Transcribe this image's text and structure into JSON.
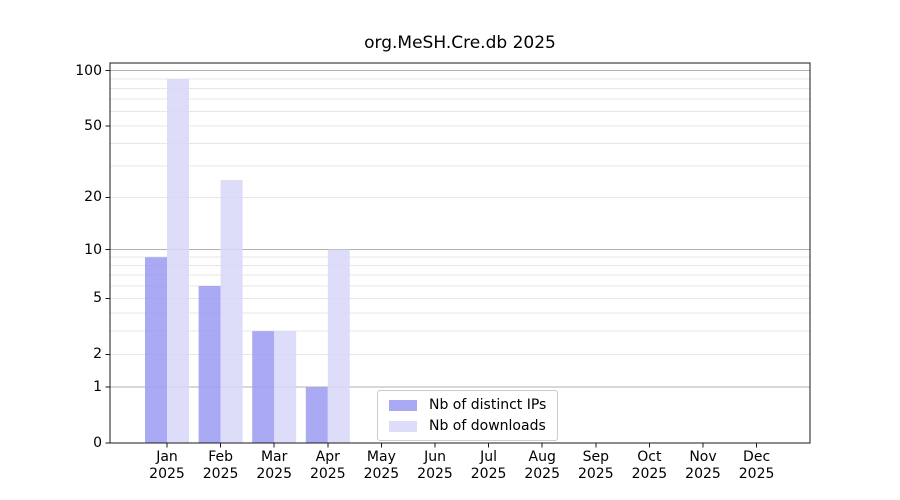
{
  "title": "org.MeSH.Cre.db 2025",
  "chart_data": {
    "type": "bar",
    "title": "org.MeSH.Cre.db 2025",
    "yscale": "log1p",
    "ylim": [
      0,
      110
    ],
    "ytick_values": [
      0,
      1,
      2,
      5,
      10,
      20,
      50,
      100
    ],
    "ytick_labels": [
      "0",
      "1",
      "2",
      "5",
      "10",
      "20",
      "50",
      "100"
    ],
    "grid": "horizontal; light minor lines, darker lines at 1/10/100",
    "categories": [
      "Jan",
      "Feb",
      "Mar",
      "Apr",
      "May",
      "Jun",
      "Jul",
      "Aug",
      "Sep",
      "Oct",
      "Nov",
      "Dec"
    ],
    "year_label": "2025",
    "series": [
      {
        "name": "Nb of distinct IPs",
        "color": "#9e9ef2",
        "values": [
          9,
          6,
          3,
          1,
          0,
          0,
          0,
          0,
          0,
          0,
          0,
          0
        ]
      },
      {
        "name": "Nb of downloads",
        "color": "#d8d8f8",
        "values": [
          90,
          25,
          3,
          10,
          0,
          0,
          0,
          0,
          0,
          0,
          0,
          0
        ]
      }
    ],
    "legend_position": "inside lower-center",
    "colors": {
      "minor_grid": "#e7e7e7",
      "major_grid": "#b0b0b0",
      "spine": "#1a1a1a"
    }
  }
}
